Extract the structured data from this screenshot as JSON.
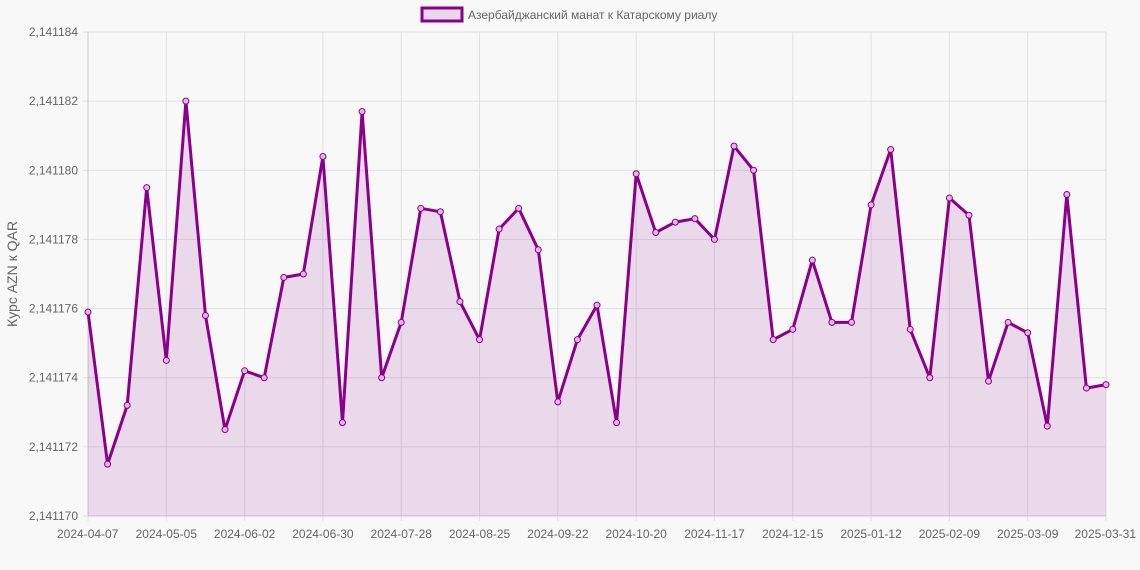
{
  "colors": {
    "series": "#8b008b",
    "fill": "rgba(139,0,139,0.12)",
    "grid": "#e0e0e0",
    "text": "#666666",
    "background": "#f8f8f8"
  },
  "chart_data": {
    "type": "line",
    "title": "",
    "xlabel": "",
    "ylabel": "Курс AZN к QAR",
    "legend_position": "top-center",
    "grid": true,
    "ylim": [
      2.14117,
      2.141184
    ],
    "y_ticks": [
      "2,141170",
      "2,141172",
      "2,141174",
      "2,141176",
      "2,141178",
      "2,141180",
      "2,141182",
      "2,141184"
    ],
    "x_ticks": [
      {
        "index": 0,
        "label": "2024-04-07"
      },
      {
        "index": 4,
        "label": "2024-05-05"
      },
      {
        "index": 8,
        "label": "2024-06-02"
      },
      {
        "index": 12,
        "label": "2024-06-30"
      },
      {
        "index": 16,
        "label": "2024-07-28"
      },
      {
        "index": 20,
        "label": "2024-08-25"
      },
      {
        "index": 24,
        "label": "2024-09-22"
      },
      {
        "index": 28,
        "label": "2024-10-20"
      },
      {
        "index": 32,
        "label": "2024-11-17"
      },
      {
        "index": 36,
        "label": "2024-12-15"
      },
      {
        "index": 40,
        "label": "2025-01-12"
      },
      {
        "index": 44,
        "label": "2025-02-09"
      },
      {
        "index": 48,
        "label": "2025-03-09"
      },
      {
        "index": 52,
        "label": "2025-03-31"
      }
    ],
    "series": [
      {
        "name": "Азербайджанский манат к Катарскому риалу",
        "values": [
          2.1411759,
          2.1411715,
          2.1411732,
          2.1411795,
          2.1411745,
          2.141182,
          2.1411758,
          2.1411725,
          2.1411742,
          2.141174,
          2.1411769,
          2.141177,
          2.1411804,
          2.1411727,
          2.1411817,
          2.141174,
          2.1411756,
          2.1411789,
          2.1411788,
          2.1411762,
          2.1411751,
          2.1411783,
          2.1411789,
          2.1411777,
          2.1411733,
          2.1411751,
          2.1411761,
          2.1411727,
          2.1411799,
          2.1411782,
          2.1411785,
          2.1411786,
          2.141178,
          2.1411807,
          2.14118,
          2.1411751,
          2.1411754,
          2.1411774,
          2.1411756,
          2.1411756,
          2.141179,
          2.1411806,
          2.1411754,
          2.141174,
          2.1411792,
          2.1411787,
          2.1411739,
          2.1411756,
          2.1411753,
          2.1411726,
          2.1411793,
          2.1411737,
          2.1411738
        ]
      }
    ]
  }
}
